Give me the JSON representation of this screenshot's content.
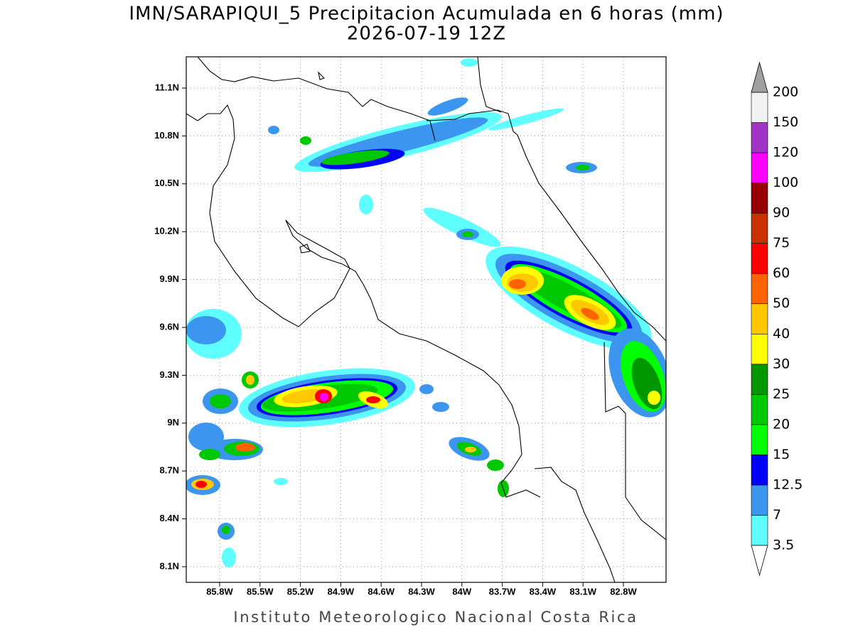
{
  "map": {
    "title": "IMN/SARAPIQUI_5 Precipitacion Acumulada en 6 horas (mm)",
    "subtitle": "2026-07-19 12Z",
    "footer": "Instituto Meteorologico Nacional Costa Rica",
    "lon_ticks": [
      {
        "value": -85.8,
        "label": "85.8W"
      },
      {
        "value": -85.5,
        "label": "85.5W"
      },
      {
        "value": -85.2,
        "label": "85.2W"
      },
      {
        "value": -84.9,
        "label": "84.9W"
      },
      {
        "value": -84.6,
        "label": "84.6W"
      },
      {
        "value": -84.3,
        "label": "84.3W"
      },
      {
        "value": -84,
        "label": "84W"
      },
      {
        "value": -83.7,
        "label": "83.7W"
      },
      {
        "value": -83.4,
        "label": "83.4W"
      },
      {
        "value": -83.1,
        "label": "83.1W"
      },
      {
        "value": -82.8,
        "label": "82.8W"
      }
    ],
    "lat_ticks": [
      {
        "value": 11.1,
        "label": "11.1N"
      },
      {
        "value": 10.8,
        "label": "10.8N"
      },
      {
        "value": 10.5,
        "label": "10.5N"
      },
      {
        "value": 10.2,
        "label": "10.2N"
      },
      {
        "value": 9.9,
        "label": "9.9N"
      },
      {
        "value": 9.6,
        "label": "9.6N"
      },
      {
        "value": 9.3,
        "label": "9.3N"
      },
      {
        "value": 9,
        "label": "9N"
      },
      {
        "value": 8.7,
        "label": "8.7N"
      },
      {
        "value": 8.4,
        "label": "8.4N"
      },
      {
        "value": 8.1,
        "label": "8.1N"
      }
    ],
    "grid": true,
    "colorbar": {
      "levels": [
        3.5,
        7,
        12.5,
        15,
        20,
        25,
        30,
        40,
        50,
        60,
        75,
        90,
        100,
        120,
        150,
        200
      ],
      "colors": [
        "#60ffff",
        "#3c96f0",
        "#0000ff",
        "#00ff00",
        "#00c800",
        "#009600",
        "#ffff00",
        "#ffc800",
        "#ff6400",
        "#ff0000",
        "#c83200",
        "#960000",
        "#ff00ff",
        "#a032c8",
        "#f2f2f2"
      ],
      "under_color": "#ffffff",
      "over_color": "#a0a0a0"
    }
  }
}
